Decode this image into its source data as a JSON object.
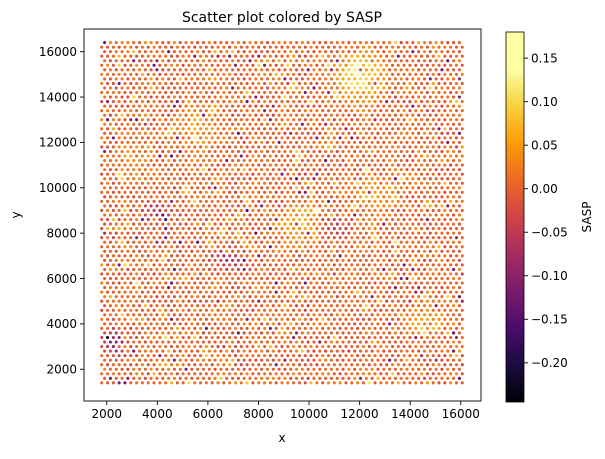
{
  "chart_data": {
    "type": "scatter",
    "title": "Scatter plot colored by SASP",
    "xlabel": "x",
    "ylabel": "y",
    "xlim": [
      1100,
      16800
    ],
    "ylim": [
      600,
      17000
    ],
    "xticks": [
      2000,
      4000,
      6000,
      8000,
      10000,
      12000,
      14000,
      16000
    ],
    "yticks": [
      2000,
      4000,
      6000,
      8000,
      10000,
      12000,
      14000,
      16000
    ],
    "grid": false,
    "colormap": "inferno",
    "marker_color_note": "points colored by SASP value",
    "point_grid": {
      "x_min": 1800,
      "x_max": 16100,
      "y_min": 1400,
      "y_max": 16400,
      "row_spacing_y": 200,
      "col_spacing_x": 230,
      "row_offset_x": 115
    },
    "colorbar": {
      "label": "SASP",
      "min": -0.245,
      "max": 0.18,
      "ticks": [
        -0.2,
        -0.15,
        -0.1,
        -0.05,
        0.0,
        0.05,
        0.1,
        0.15
      ],
      "tick_labels": [
        "−0.20",
        "−0.15",
        "−0.10",
        "−0.05",
        "0.00",
        "0.05",
        "0.10",
        "0.15"
      ]
    },
    "hotspots": [
      {
        "x": 12000,
        "y": 14900,
        "value": 0.15
      },
      {
        "x": 9700,
        "y": 8500,
        "value": 0.08
      },
      {
        "x": 12700,
        "y": 9700,
        "value": 0.07
      },
      {
        "x": 5700,
        "y": 12700,
        "value": 0.06
      },
      {
        "x": 14600,
        "y": 4200,
        "value": 0.05
      },
      {
        "x": 3100,
        "y": 11300,
        "value": 0.05
      }
    ],
    "coldspots": [
      {
        "x": 2300,
        "y": 3200,
        "value": -0.16
      },
      {
        "x": 6800,
        "y": 6800,
        "value": -0.12
      },
      {
        "x": 11000,
        "y": 8300,
        "value": -0.1
      },
      {
        "x": 3900,
        "y": 8900,
        "value": -0.1
      }
    ]
  }
}
